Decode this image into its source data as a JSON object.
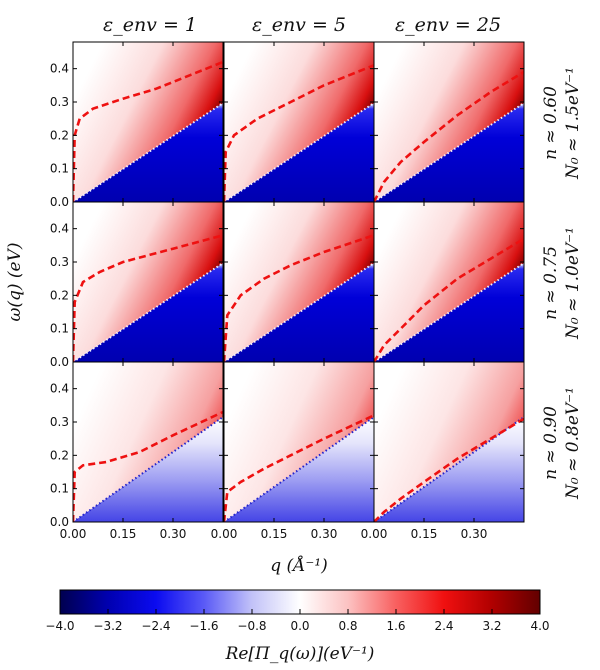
{
  "chart_data": {
    "type": "heatmap",
    "column_titles": [
      "ε_env = 1",
      "ε_env = 5",
      "ε_env = 25"
    ],
    "row_labels": [
      {
        "line1": "n ≈ 0.60",
        "line2": "N₀ ≈ 1.5eV⁻¹"
      },
      {
        "line1": "n ≈ 0.75",
        "line2": "N₀ ≈ 1.0eV⁻¹"
      },
      {
        "line1": "n ≈ 0.90",
        "line2": "N₀ ≈ 0.8eV⁻¹"
      }
    ],
    "xlabel": "q (Å⁻¹)",
    "ylabel": "ω(q) (eV)",
    "x_ticks": [
      "0.00",
      "0.15",
      "0.30",
      "0.00",
      "0.15",
      "0.30",
      "0.00",
      "0.15",
      "0.30"
    ],
    "y_ticks": [
      "0.0",
      "0.1",
      "0.2",
      "0.3",
      "0.4"
    ],
    "xlim": [
      0,
      0.45
    ],
    "ylim": [
      0,
      0.48
    ],
    "colorbar": {
      "label": "Re[Π_q(ω)](eV⁻¹)",
      "range": [
        -4.0,
        4.0
      ],
      "ticks": [
        "−4.0",
        "−3.2",
        "−2.4",
        "−1.6",
        "−0.8",
        "0.0",
        "0.8",
        "1.6",
        "2.4",
        "3.2",
        "4.0"
      ]
    },
    "rows": [
      {
        "slope": 0.66,
        "panels": [
          {
            "plasmon": [
              [
                0.0,
                0.0
              ],
              [
                0.005,
                0.2
              ],
              [
                0.02,
                0.25
              ],
              [
                0.06,
                0.28
              ],
              [
                0.15,
                0.31
              ],
              [
                0.25,
                0.34
              ],
              [
                0.35,
                0.38
              ],
              [
                0.45,
                0.42
              ]
            ]
          },
          {
            "plasmon": [
              [
                0.0,
                0.0
              ],
              [
                0.005,
                0.15
              ],
              [
                0.03,
                0.2
              ],
              [
                0.1,
                0.25
              ],
              [
                0.2,
                0.3
              ],
              [
                0.3,
                0.35
              ],
              [
                0.45,
                0.41
              ]
            ]
          },
          {
            "plasmon": [
              [
                0.0,
                0.0
              ],
              [
                0.03,
                0.06
              ],
              [
                0.08,
                0.12
              ],
              [
                0.15,
                0.18
              ],
              [
                0.25,
                0.26
              ],
              [
                0.35,
                0.33
              ],
              [
                0.45,
                0.39
              ]
            ]
          }
        ]
      },
      {
        "slope": 0.66,
        "panels": [
          {
            "plasmon": [
              [
                0.0,
                0.0
              ],
              [
                0.005,
                0.18
              ],
              [
                0.03,
                0.24
              ],
              [
                0.08,
                0.27
              ],
              [
                0.15,
                0.3
              ],
              [
                0.3,
                0.34
              ],
              [
                0.45,
                0.38
              ]
            ]
          },
          {
            "plasmon": [
              [
                0.0,
                0.0
              ],
              [
                0.01,
                0.14
              ],
              [
                0.05,
                0.2
              ],
              [
                0.12,
                0.25
              ],
              [
                0.2,
                0.29
              ],
              [
                0.3,
                0.33
              ],
              [
                0.45,
                0.38
              ]
            ]
          },
          {
            "plasmon": [
              [
                0.0,
                0.0
              ],
              [
                0.03,
                0.05
              ],
              [
                0.08,
                0.1
              ],
              [
                0.15,
                0.17
              ],
              [
                0.25,
                0.25
              ],
              [
                0.35,
                0.31
              ],
              [
                0.45,
                0.37
              ]
            ]
          }
        ]
      },
      {
        "slope": 0.7,
        "panels": [
          {
            "plasmon": [
              [
                0.0,
                0.0
              ],
              [
                0.005,
                0.15
              ],
              [
                0.03,
                0.17
              ],
              [
                0.1,
                0.18
              ],
              [
                0.2,
                0.21
              ],
              [
                0.3,
                0.26
              ],
              [
                0.45,
                0.33
              ]
            ]
          },
          {
            "plasmon": [
              [
                0.0,
                0.0
              ],
              [
                0.01,
                0.09
              ],
              [
                0.05,
                0.12
              ],
              [
                0.12,
                0.16
              ],
              [
                0.2,
                0.2
              ],
              [
                0.3,
                0.25
              ],
              [
                0.45,
                0.32
              ]
            ]
          },
          {
            "plasmon": [
              [
                0.0,
                0.0
              ],
              [
                0.03,
                0.03
              ],
              [
                0.08,
                0.07
              ],
              [
                0.15,
                0.12
              ],
              [
                0.25,
                0.19
              ],
              [
                0.35,
                0.25
              ],
              [
                0.45,
                0.31
              ]
            ]
          }
        ]
      }
    ],
    "colors": {
      "plasmon": "#ee1111",
      "boundary_dots": "#f2f2ff",
      "boundary_dots_low": "#2222cc",
      "colormap": [
        "#00004f",
        "#0000b0",
        "#0b0bf0",
        "#5a5af6",
        "#c2c2f8",
        "#ffffff",
        "#fcc2c2",
        "#f86060",
        "#f01010",
        "#b00000",
        "#620000"
      ]
    }
  }
}
